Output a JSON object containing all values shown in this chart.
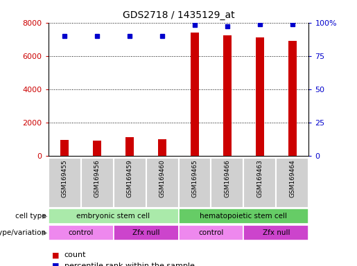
{
  "title": "GDS2718 / 1435129_at",
  "samples": [
    "GSM169455",
    "GSM169456",
    "GSM169459",
    "GSM169460",
    "GSM169465",
    "GSM169466",
    "GSM169463",
    "GSM169464"
  ],
  "counts": [
    950,
    900,
    1100,
    1000,
    7400,
    7250,
    7100,
    6900
  ],
  "percentile_ranks": [
    90,
    90,
    90,
    90,
    98,
    97,
    99,
    99
  ],
  "ylim_left": [
    0,
    8000
  ],
  "ylim_right": [
    0,
    100
  ],
  "yticks_left": [
    0,
    2000,
    4000,
    6000,
    8000
  ],
  "yticks_right": [
    0,
    25,
    50,
    75,
    100
  ],
  "bar_color": "#cc0000",
  "dot_color": "#0000cc",
  "cell_type_groups": [
    {
      "label": "embryonic stem cell",
      "start": 0,
      "end": 4,
      "color": "#aaeaaa"
    },
    {
      "label": "hematopoietic stem cell",
      "start": 4,
      "end": 8,
      "color": "#66cc66"
    }
  ],
  "genotype_groups": [
    {
      "label": "control",
      "start": 0,
      "end": 2,
      "color": "#ee88ee"
    },
    {
      "label": "Zfx null",
      "start": 2,
      "end": 4,
      "color": "#cc44cc"
    },
    {
      "label": "control",
      "start": 4,
      "end": 6,
      "color": "#ee88ee"
    },
    {
      "label": "Zfx null",
      "start": 6,
      "end": 8,
      "color": "#cc44cc"
    }
  ],
  "legend_count_color": "#cc0000",
  "legend_pct_color": "#0000cc",
  "bg_color": "#ffffff",
  "tick_label_color_left": "#cc0000",
  "tick_label_color_right": "#0000cc",
  "xtick_bg_color": "#d0d0d0",
  "xtick_border_color": "#ffffff"
}
